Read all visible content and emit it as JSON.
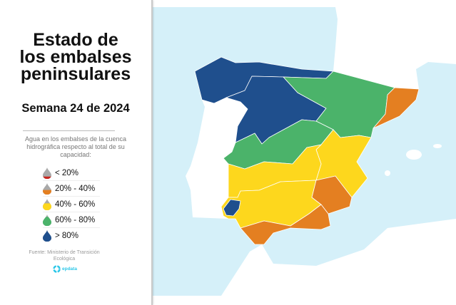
{
  "title": "Estado de los embalses peninsulares",
  "title_lines": [
    "Estado de",
    "los embalses",
    "peninsulares"
  ],
  "subtitle": "Semana 24 de 2024",
  "description": "Agua en los embalses de la cuenca hidrográfica respecto al total de su capacidad:",
  "legend": [
    {
      "label": "< 20%",
      "color": "#c8261f",
      "level": 0.2
    },
    {
      "label": "20% - 40%",
      "color": "#e47f21",
      "level": 0.4
    },
    {
      "label": "40% - 60%",
      "color": "#fdd71d",
      "level": 0.6
    },
    {
      "label": "60% - 80%",
      "color": "#4bb36a",
      "level": 0.8
    },
    {
      "label": "> 80%",
      "color": "#1f4f8d",
      "level": 1.0
    }
  ],
  "source": "Fuente: Ministerio de Transición Ecológica",
  "logo": "epdata",
  "colors": {
    "sea": "#d5f0f9",
    "land": "#ffffff",
    "drop_empty": "#a9a9a9",
    "logo": "#2dc7e8"
  },
  "basins": [
    {
      "name": "Cantábrico / Miño-Sil",
      "category": "> 80%",
      "color": "#1f4f8d"
    },
    {
      "name": "Duero",
      "category": "> 80%",
      "color": "#1f4f8d"
    },
    {
      "name": "Ebro",
      "category": "60% - 80%",
      "color": "#4bb36a"
    },
    {
      "name": "Cuencas internas de Cataluña",
      "category": "20% - 40%",
      "color": "#e47f21"
    },
    {
      "name": "Tajo",
      "category": "60% - 80%",
      "color": "#4bb36a"
    },
    {
      "name": "Júcar",
      "category": "40% - 60%",
      "color": "#fdd71d"
    },
    {
      "name": "Guadiana",
      "category": "40% - 60%",
      "color": "#fdd71d"
    },
    {
      "name": "Guadalquivir",
      "category": "40% - 60%",
      "color": "#fdd71d"
    },
    {
      "name": "Segura",
      "category": "20% - 40%",
      "color": "#e47f21"
    },
    {
      "name": "Cuencas mediterráneas andaluzas",
      "category": "20% - 40%",
      "color": "#e47f21"
    },
    {
      "name": "Tinto, Odiel y Piedras",
      "category": "> 80%",
      "color": "#1f4f8d"
    }
  ]
}
